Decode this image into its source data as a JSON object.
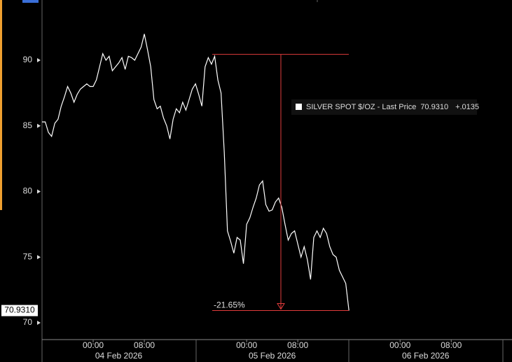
{
  "chart_data": {
    "type": "line",
    "series": [
      {
        "name": "SILVER SPOT $/OZ - Last Price",
        "color": "#ffffff",
        "values": [
          85.3,
          85.3,
          84.5,
          84.2,
          85.2,
          85.5,
          86.5,
          87.2,
          88.0,
          87.5,
          86.8,
          87.4,
          87.8,
          88.0,
          88.2,
          88.0,
          88.0,
          88.5,
          89.5,
          90.5,
          90.0,
          90.3,
          89.2,
          89.5,
          89.8,
          90.2,
          89.3,
          90.3,
          90.2,
          90.0,
          90.5,
          91.0,
          92.0,
          90.8,
          89.5,
          87.0,
          86.3,
          86.5,
          85.6,
          85.0,
          84.0,
          85.5,
          86.3,
          86.0,
          86.8,
          86.2,
          87.0,
          87.8,
          88.2,
          87.4,
          86.5,
          89.5,
          90.2,
          89.7,
          90.3,
          88.5,
          87.5,
          83.0,
          77.0,
          76.2,
          75.3,
          76.5,
          76.3,
          74.5,
          77.5,
          78.0,
          78.8,
          79.5,
          80.5,
          80.8,
          79.0,
          78.5,
          78.6,
          79.2,
          79.5,
          78.8,
          77.5,
          76.3,
          76.8,
          77.0,
          76.0,
          75.0,
          75.8,
          74.8,
          73.3,
          76.5,
          77.0,
          76.5,
          77.2,
          76.8,
          75.8,
          75.2,
          75.0,
          74.0,
          73.5,
          73.0,
          70.931
        ]
      }
    ],
    "legend": {
      "last_price_label": "70.9310",
      "change_label": "+.0135"
    },
    "annotation": {
      "text": "-21.65%",
      "high": 90.45,
      "low": 70.931
    },
    "xlim": [
      0,
      147
    ],
    "xticks": [
      {
        "value": 16,
        "label": "00:00"
      },
      {
        "value": 32,
        "label": "08:00"
      },
      {
        "value": 64,
        "label": "00:00"
      },
      {
        "value": 80,
        "label": "08:00"
      },
      {
        "value": 112,
        "label": "00:00"
      },
      {
        "value": 128,
        "label": "08:00"
      }
    ],
    "xgroups": [
      {
        "value": 24,
        "label": "04 Feb 2026"
      },
      {
        "value": 72,
        "label": "05 Feb 2026"
      },
      {
        "value": 120,
        "label": "06 Feb 2026"
      }
    ],
    "ylim": [
      68.72,
      94.32
    ],
    "yticks": [
      70,
      75,
      80,
      85,
      90
    ]
  }
}
